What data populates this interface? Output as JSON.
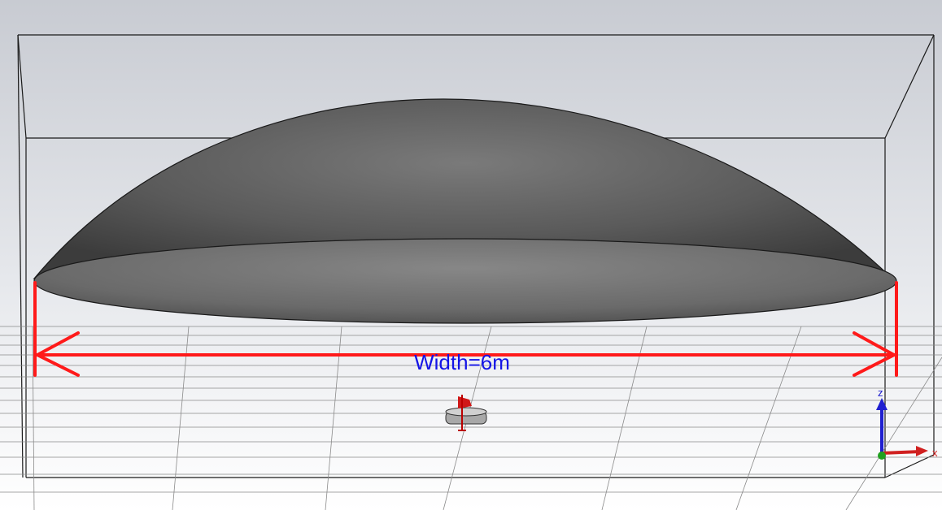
{
  "viewport": {
    "background_top": "#c9ccd3",
    "background_bottom": "#ffffff",
    "dimension_label": "Width=6m",
    "dimension_color": "#ff1a1a",
    "label_color": "#1414e6"
  },
  "model": {
    "dome_color": "#5a5a5a",
    "feed_color": "#b0b0b0"
  },
  "axes": {
    "x_label": "x",
    "z_label": "z",
    "x_color": "#d02020",
    "z_color": "#2020d0",
    "y_color": "#20a020"
  }
}
